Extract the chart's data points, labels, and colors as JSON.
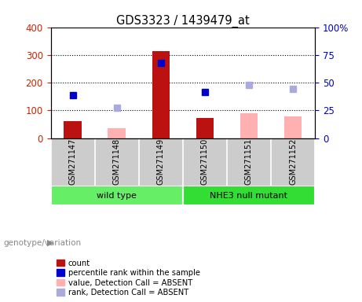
{
  "title": "GDS3323 / 1439479_at",
  "samples": [
    "GSM271147",
    "GSM271148",
    "GSM271149",
    "GSM271150",
    "GSM271151",
    "GSM271152"
  ],
  "count_values": [
    60,
    null,
    315,
    72,
    null,
    null
  ],
  "absent_value_bars": [
    null,
    35,
    null,
    null,
    90,
    78
  ],
  "percentile_rank_present": [
    155,
    null,
    270,
    165,
    null,
    null
  ],
  "percentile_rank_absent": [
    null,
    108,
    null,
    null,
    192,
    178
  ],
  "left_ylim": [
    0,
    400
  ],
  "left_yticks": [
    0,
    100,
    200,
    300,
    400
  ],
  "right_ylim": [
    0,
    100
  ],
  "right_yticks": [
    0,
    25,
    50,
    75,
    100
  ],
  "right_yticklabels": [
    "0",
    "25",
    "50",
    "75",
    "100%"
  ],
  "bar_width": 0.4,
  "count_color": "#bb1111",
  "absent_bar_color": "#ffb0b0",
  "rank_present_color": "#0000cc",
  "rank_absent_color": "#aaaadd",
  "legend_items": [
    {
      "label": "count",
      "color": "#bb1111"
    },
    {
      "label": "percentile rank within the sample",
      "color": "#0000cc"
    },
    {
      "label": "value, Detection Call = ABSENT",
      "color": "#ffb0b0"
    },
    {
      "label": "rank, Detection Call = ABSENT",
      "color": "#aaaadd"
    }
  ],
  "grid_color": "black",
  "grid_linestyle": ":",
  "ylabel_left_color": "#cc2200",
  "ylabel_right_color": "#0000cc",
  "tick_label_area_bg": "#cccccc",
  "group_label_text": "genotype/variation",
  "group_color": "#66ee66",
  "group_color2": "#33dd33",
  "group1_label": "wild type",
  "group2_label": "NHE3 null mutant"
}
